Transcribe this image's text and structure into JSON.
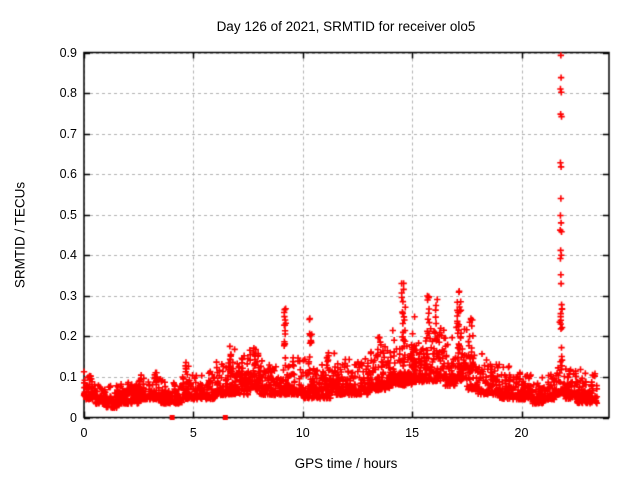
{
  "chart_data": {
    "type": "scatter",
    "title": "Day 126 of 2021, SRMTID for receiver olo5",
    "xlabel": "GPS time / hours",
    "ylabel": "SRMTID / TECUs",
    "xlim": [
      0,
      24
    ],
    "ylim": [
      0,
      0.9
    ],
    "xticks": [
      0,
      5,
      10,
      15,
      20
    ],
    "yticks": [
      0,
      0.1,
      0.2,
      0.3,
      0.4,
      0.5,
      0.6,
      0.7,
      0.8,
      0.9
    ],
    "xtick_labels": [
      "0",
      "5",
      "10",
      "15",
      "20"
    ],
    "ytick_labels": [
      "0",
      "0.1",
      "0.2",
      "0.3",
      "0.4",
      "0.5",
      "0.6",
      "0.7",
      "0.8",
      "0.9"
    ],
    "grid": true,
    "legend": "none",
    "marker": "plus",
    "marker_color": "#ff0000",
    "grid_color": "#b0b0b0",
    "border_color": "#000000",
    "background_color": "#ffffff",
    "bands": [
      [
        0.0,
        0.5,
        55,
        0.04,
        0.12
      ],
      [
        0.5,
        1.0,
        55,
        0.03,
        0.09
      ],
      [
        1.0,
        1.5,
        55,
        0.02,
        0.08
      ],
      [
        1.5,
        2.0,
        55,
        0.03,
        0.09
      ],
      [
        2.0,
        2.5,
        55,
        0.03,
        0.1
      ],
      [
        2.5,
        3.0,
        55,
        0.04,
        0.11
      ],
      [
        3.0,
        3.5,
        55,
        0.04,
        0.12
      ],
      [
        3.5,
        4.0,
        55,
        0.03,
        0.1
      ],
      [
        4.0,
        4.5,
        50,
        0.03,
        0.1
      ],
      [
        4.5,
        5.0,
        50,
        0.04,
        0.13
      ],
      [
        5.0,
        5.5,
        50,
        0.04,
        0.11
      ],
      [
        5.5,
        6.0,
        50,
        0.04,
        0.12
      ],
      [
        6.0,
        6.5,
        50,
        0.05,
        0.14
      ],
      [
        6.5,
        7.0,
        55,
        0.05,
        0.17
      ],
      [
        7.0,
        7.5,
        55,
        0.05,
        0.15
      ],
      [
        7.5,
        8.0,
        55,
        0.06,
        0.18
      ],
      [
        8.0,
        8.5,
        55,
        0.05,
        0.15
      ],
      [
        8.5,
        9.0,
        55,
        0.05,
        0.14
      ],
      [
        9.0,
        9.5,
        55,
        0.05,
        0.16
      ],
      [
        9.5,
        10.0,
        55,
        0.05,
        0.15
      ],
      [
        10.0,
        10.5,
        55,
        0.04,
        0.15
      ],
      [
        10.5,
        11.0,
        55,
        0.04,
        0.15
      ],
      [
        11.0,
        11.5,
        55,
        0.04,
        0.16
      ],
      [
        11.5,
        12.0,
        55,
        0.05,
        0.15
      ],
      [
        12.0,
        12.5,
        55,
        0.05,
        0.15
      ],
      [
        12.5,
        13.0,
        55,
        0.05,
        0.16
      ],
      [
        13.0,
        13.5,
        55,
        0.06,
        0.18
      ],
      [
        13.5,
        14.0,
        55,
        0.06,
        0.2
      ],
      [
        14.0,
        14.5,
        55,
        0.07,
        0.22
      ],
      [
        14.5,
        15.0,
        55,
        0.07,
        0.22
      ],
      [
        15.0,
        15.5,
        55,
        0.08,
        0.2
      ],
      [
        15.5,
        16.0,
        55,
        0.08,
        0.22
      ],
      [
        16.0,
        16.5,
        55,
        0.08,
        0.24
      ],
      [
        16.5,
        17.0,
        55,
        0.07,
        0.2
      ],
      [
        17.0,
        17.5,
        55,
        0.08,
        0.24
      ],
      [
        17.5,
        18.0,
        55,
        0.06,
        0.2
      ],
      [
        18.0,
        18.5,
        55,
        0.05,
        0.16
      ],
      [
        18.5,
        19.0,
        55,
        0.05,
        0.15
      ],
      [
        19.0,
        19.5,
        55,
        0.04,
        0.13
      ],
      [
        19.5,
        20.0,
        55,
        0.04,
        0.12
      ],
      [
        20.0,
        20.5,
        55,
        0.04,
        0.11
      ],
      [
        20.5,
        21.0,
        55,
        0.03,
        0.1
      ],
      [
        21.0,
        21.5,
        55,
        0.04,
        0.11
      ],
      [
        21.5,
        22.0,
        50,
        0.05,
        0.14
      ],
      [
        22.0,
        22.5,
        55,
        0.04,
        0.14
      ],
      [
        22.5,
        23.0,
        55,
        0.03,
        0.12
      ],
      [
        23.0,
        23.45,
        50,
        0.03,
        0.11
      ]
    ],
    "clusters": [
      [
        3.3,
        6,
        0.08,
        0.13,
        0.08
      ],
      [
        4.7,
        6,
        0.08,
        0.14,
        0.08
      ],
      [
        6.7,
        10,
        0.09,
        0.18,
        0.1
      ],
      [
        7.3,
        8,
        0.09,
        0.16,
        0.1
      ],
      [
        7.8,
        10,
        0.1,
        0.19,
        0.1
      ],
      [
        9.2,
        14,
        0.17,
        0.3,
        0.07
      ],
      [
        10.35,
        10,
        0.15,
        0.25,
        0.07
      ],
      [
        11.15,
        6,
        0.12,
        0.17,
        0.08
      ],
      [
        13.5,
        8,
        0.13,
        0.2,
        0.08
      ],
      [
        14.6,
        22,
        0.14,
        0.335,
        0.09
      ],
      [
        15.05,
        10,
        0.12,
        0.25,
        0.08
      ],
      [
        15.75,
        14,
        0.14,
        0.3,
        0.08
      ],
      [
        16.1,
        12,
        0.14,
        0.3,
        0.08
      ],
      [
        17.15,
        22,
        0.12,
        0.315,
        0.09
      ],
      [
        17.7,
        12,
        0.11,
        0.25,
        0.08
      ],
      [
        21.8,
        16,
        0.1,
        0.3,
        0.06
      ]
    ],
    "spike_points": [
      [
        21.8,
        0.893
      ],
      [
        21.81,
        0.838
      ],
      [
        21.78,
        0.81
      ],
      [
        21.82,
        0.802
      ],
      [
        21.79,
        0.748
      ],
      [
        21.83,
        0.742
      ],
      [
        21.78,
        0.628
      ],
      [
        21.81,
        0.618
      ],
      [
        21.8,
        0.54
      ],
      [
        21.78,
        0.498
      ],
      [
        21.81,
        0.48
      ],
      [
        21.77,
        0.462
      ],
      [
        21.83,
        0.458
      ],
      [
        21.79,
        0.412
      ],
      [
        21.82,
        0.4
      ],
      [
        21.78,
        0.392
      ],
      [
        21.8,
        0.352
      ],
      [
        21.81,
        0.33
      ]
    ],
    "zero_square_points_x": [
      4.03,
      6.46
    ]
  }
}
